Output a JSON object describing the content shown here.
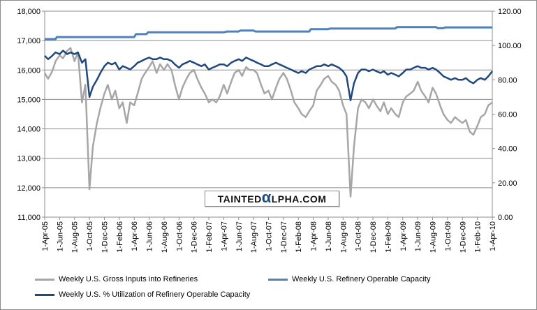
{
  "chart_data": {
    "type": "line",
    "title": "",
    "xlabel": "",
    "ylabel": "",
    "left_axis": {
      "ylim": [
        11000,
        18000
      ],
      "ticks": [
        "11,000",
        "12,000",
        "13,000",
        "14,000",
        "15,000",
        "16,000",
        "17,000",
        "18,000"
      ]
    },
    "right_axis": {
      "ylim": [
        0,
        120
      ],
      "ticks": [
        "0.00",
        "20.00",
        "40.00",
        "60.00",
        "80.00",
        "100.00",
        "120.00"
      ]
    },
    "x_ticks": [
      "1-Apr-05",
      "1-Jun-05",
      "1-Aug-05",
      "1-Oct-05",
      "1-Dec-05",
      "1-Feb-06",
      "1-Apr-06",
      "1-Jun-06",
      "1-Aug-06",
      "1-Oct-06",
      "1-Dec-06",
      "1-Feb-07",
      "1-Apr-07",
      "1-Jun-07",
      "1-Aug-07",
      "1-Oct-07",
      "1-Dec-07",
      "1-Feb-08",
      "1-Apr-08",
      "1-Jun-08",
      "1-Aug-08",
      "1-Oct-08",
      "1-Dec-08",
      "1-Feb-09",
      "1-Apr-09",
      "1-Jun-09",
      "1-Aug-09",
      "1-Oct-09",
      "1-Dec-09",
      "1-Feb-10",
      "1-Apr-10"
    ],
    "x_range_months": [
      "2005-04",
      "2010-04"
    ],
    "grid": true,
    "legend_placement": "bottom",
    "series": [
      {
        "name": "Weekly U.S. Gross Inputs into Refineries",
        "axis": "left",
        "color": "#a6a6a6",
        "points": [
          [
            "2005-04",
            15900
          ],
          [
            "2005-04-15",
            15700
          ],
          [
            "2005-05",
            15950
          ],
          [
            "2005-05-15",
            16300
          ],
          [
            "2005-06",
            16500
          ],
          [
            "2005-06-15",
            16400
          ],
          [
            "2005-07",
            16650
          ],
          [
            "2005-07-15",
            16750
          ],
          [
            "2005-08",
            16300
          ],
          [
            "2005-08-15",
            16600
          ],
          [
            "2005-09",
            14900
          ],
          [
            "2005-09-15",
            15500
          ],
          [
            "2005-10",
            11950
          ],
          [
            "2005-10-15",
            13400
          ],
          [
            "2005-11",
            14200
          ],
          [
            "2005-11-15",
            14700
          ],
          [
            "2005-12",
            15200
          ],
          [
            "2005-12-15",
            15500
          ],
          [
            "2006-01",
            15000
          ],
          [
            "2006-01-15",
            15300
          ],
          [
            "2006-02",
            14700
          ],
          [
            "2006-02-15",
            14900
          ],
          [
            "2006-03",
            14200
          ],
          [
            "2006-03-15",
            14900
          ],
          [
            "2006-04",
            14800
          ],
          [
            "2006-04-15",
            15200
          ],
          [
            "2006-05",
            15700
          ],
          [
            "2006-05-15",
            15900
          ],
          [
            "2006-06",
            16100
          ],
          [
            "2006-06-15",
            16300
          ],
          [
            "2006-07",
            15900
          ],
          [
            "2006-07-15",
            16200
          ],
          [
            "2006-08",
            16000
          ],
          [
            "2006-08-15",
            16200
          ],
          [
            "2006-09",
            16000
          ],
          [
            "2006-09-15",
            15500
          ],
          [
            "2006-10",
            15000
          ],
          [
            "2006-10-15",
            15400
          ],
          [
            "2006-11",
            15700
          ],
          [
            "2006-11-15",
            15900
          ],
          [
            "2006-12",
            16000
          ],
          [
            "2006-12-15",
            15700
          ],
          [
            "2007-01",
            15400
          ],
          [
            "2007-01-15",
            15200
          ],
          [
            "2007-02",
            14900
          ],
          [
            "2007-02-15",
            15000
          ],
          [
            "2007-03",
            14900
          ],
          [
            "2007-03-15",
            15100
          ],
          [
            "2007-04",
            15500
          ],
          [
            "2007-04-15",
            15200
          ],
          [
            "2007-05",
            15600
          ],
          [
            "2007-05-15",
            15900
          ],
          [
            "2007-06",
            16000
          ],
          [
            "2007-06-15",
            15800
          ],
          [
            "2007-07",
            16100
          ],
          [
            "2007-07-15",
            16000
          ],
          [
            "2007-08",
            16000
          ],
          [
            "2007-08-15",
            15900
          ],
          [
            "2007-09",
            15500
          ],
          [
            "2007-09-15",
            15200
          ],
          [
            "2007-10",
            15300
          ],
          [
            "2007-10-15",
            15000
          ],
          [
            "2007-11",
            15400
          ],
          [
            "2007-11-15",
            15700
          ],
          [
            "2007-12",
            15900
          ],
          [
            "2007-12-15",
            15700
          ],
          [
            "2008-01",
            15300
          ],
          [
            "2008-01-15",
            14900
          ],
          [
            "2008-02",
            14700
          ],
          [
            "2008-02-15",
            14500
          ],
          [
            "2008-03",
            14400
          ],
          [
            "2008-03-15",
            14600
          ],
          [
            "2008-04",
            14800
          ],
          [
            "2008-04-15",
            15300
          ],
          [
            "2008-05",
            15500
          ],
          [
            "2008-05-15",
            15700
          ],
          [
            "2008-06",
            15800
          ],
          [
            "2008-06-15",
            15600
          ],
          [
            "2008-07",
            15500
          ],
          [
            "2008-07-15",
            15300
          ],
          [
            "2008-08",
            14800
          ],
          [
            "2008-08-15",
            14500
          ],
          [
            "2008-09",
            11700
          ],
          [
            "2008-09-15",
            13400
          ],
          [
            "2008-10",
            14700
          ],
          [
            "2008-10-15",
            15000
          ],
          [
            "2008-11",
            14900
          ],
          [
            "2008-11-15",
            14700
          ],
          [
            "2008-12",
            15000
          ],
          [
            "2008-12-15",
            14800
          ],
          [
            "2009-01",
            14600
          ],
          [
            "2009-01-15",
            14900
          ],
          [
            "2009-02",
            14500
          ],
          [
            "2009-02-15",
            14700
          ],
          [
            "2009-03",
            14500
          ],
          [
            "2009-03-15",
            14400
          ],
          [
            "2009-04",
            14900
          ],
          [
            "2009-04-15",
            15100
          ],
          [
            "2009-05",
            15200
          ],
          [
            "2009-05-15",
            15300
          ],
          [
            "2009-06",
            15600
          ],
          [
            "2009-06-15",
            15300
          ],
          [
            "2009-07",
            15100
          ],
          [
            "2009-07-15",
            14900
          ],
          [
            "2009-08",
            15400
          ],
          [
            "2009-08-15",
            15200
          ],
          [
            "2009-09",
            14800
          ],
          [
            "2009-09-15",
            14500
          ],
          [
            "2009-10",
            14300
          ],
          [
            "2009-10-15",
            14200
          ],
          [
            "2009-11",
            14400
          ],
          [
            "2009-11-15",
            14300
          ],
          [
            "2009-12",
            14200
          ],
          [
            "2009-12-15",
            14300
          ],
          [
            "2010-01",
            13900
          ],
          [
            "2010-01-15",
            13800
          ],
          [
            "2010-02",
            14100
          ],
          [
            "2010-02-15",
            14400
          ],
          [
            "2010-03",
            14500
          ],
          [
            "2010-03-15",
            14800
          ],
          [
            "2010-04",
            14900
          ]
        ]
      },
      {
        "name": "Weekly U.S. Refinery Operable Capacity",
        "axis": "left",
        "color": "#4f81bd",
        "points": [
          [
            "2005-04",
            17050
          ],
          [
            "2005-05-15",
            17050
          ],
          [
            "2005-05-20",
            17120
          ],
          [
            "2006-04-01",
            17120
          ],
          [
            "2006-04-08",
            17220
          ],
          [
            "2006-05-20",
            17220
          ],
          [
            "2006-05-27",
            17280
          ],
          [
            "2007-04-01",
            17280
          ],
          [
            "2007-04-15",
            17310
          ],
          [
            "2007-06-01",
            17310
          ],
          [
            "2007-06-08",
            17340
          ],
          [
            "2007-08-01",
            17340
          ],
          [
            "2007-08-08",
            17310
          ],
          [
            "2008-03-15",
            17310
          ],
          [
            "2008-03-22",
            17390
          ],
          [
            "2008-06-01",
            17390
          ],
          [
            "2008-06-08",
            17410
          ],
          [
            "2009-03-01",
            17410
          ],
          [
            "2009-03-08",
            17460
          ],
          [
            "2009-08-15",
            17460
          ],
          [
            "2009-08-22",
            17420
          ],
          [
            "2009-09-15",
            17420
          ],
          [
            "2009-09-22",
            17450
          ],
          [
            "2010-04",
            17450
          ]
        ]
      },
      {
        "name": "Weekly U.S. % Utilization  of Refinery Operable Capacity",
        "axis": "right",
        "color": "#1f497d",
        "points": [
          [
            "2005-04",
            94
          ],
          [
            "2005-04-15",
            92
          ],
          [
            "2005-05",
            94
          ],
          [
            "2005-05-15",
            96
          ],
          [
            "2005-06",
            95
          ],
          [
            "2005-06-15",
            97
          ],
          [
            "2005-07",
            95
          ],
          [
            "2005-07-15",
            96
          ],
          [
            "2005-08",
            95
          ],
          [
            "2005-08-15",
            96
          ],
          [
            "2005-09",
            90
          ],
          [
            "2005-09-15",
            92
          ],
          [
            "2005-10",
            70
          ],
          [
            "2005-10-15",
            76
          ],
          [
            "2005-11",
            80
          ],
          [
            "2005-11-15",
            84
          ],
          [
            "2005-12",
            88
          ],
          [
            "2005-12-15",
            90
          ],
          [
            "2006-01",
            89
          ],
          [
            "2006-01-15",
            90
          ],
          [
            "2006-02",
            86
          ],
          [
            "2006-02-15",
            88
          ],
          [
            "2006-03",
            87
          ],
          [
            "2006-03-15",
            86
          ],
          [
            "2006-04",
            88
          ],
          [
            "2006-04-15",
            90
          ],
          [
            "2006-05",
            91
          ],
          [
            "2006-05-15",
            92
          ],
          [
            "2006-06",
            93
          ],
          [
            "2006-06-15",
            92
          ],
          [
            "2006-07",
            92
          ],
          [
            "2006-07-15",
            93
          ],
          [
            "2006-08",
            92
          ],
          [
            "2006-08-15",
            92
          ],
          [
            "2006-09",
            91
          ],
          [
            "2006-09-15",
            89
          ],
          [
            "2006-10",
            87
          ],
          [
            "2006-10-15",
            89
          ],
          [
            "2006-11",
            90
          ],
          [
            "2006-11-15",
            91
          ],
          [
            "2006-12",
            90
          ],
          [
            "2006-12-15",
            89
          ],
          [
            "2007-01",
            88
          ],
          [
            "2007-01-15",
            89
          ],
          [
            "2007-02",
            86
          ],
          [
            "2007-02-15",
            87
          ],
          [
            "2007-03",
            88
          ],
          [
            "2007-03-15",
            89
          ],
          [
            "2007-04",
            89
          ],
          [
            "2007-04-15",
            88
          ],
          [
            "2007-05",
            90
          ],
          [
            "2007-05-15",
            91
          ],
          [
            "2007-06",
            92
          ],
          [
            "2007-06-15",
            91
          ],
          [
            "2007-07",
            93
          ],
          [
            "2007-07-15",
            92
          ],
          [
            "2007-08",
            91
          ],
          [
            "2007-08-15",
            90
          ],
          [
            "2007-09",
            89
          ],
          [
            "2007-09-15",
            88
          ],
          [
            "2007-10",
            88
          ],
          [
            "2007-10-15",
            89
          ],
          [
            "2007-11",
            90
          ],
          [
            "2007-11-15",
            89
          ],
          [
            "2007-12",
            88
          ],
          [
            "2007-12-15",
            87
          ],
          [
            "2008-01",
            86
          ],
          [
            "2008-01-15",
            85
          ],
          [
            "2008-02",
            84
          ],
          [
            "2008-02-15",
            85
          ],
          [
            "2008-03",
            84
          ],
          [
            "2008-03-15",
            86
          ],
          [
            "2008-04",
            87
          ],
          [
            "2008-04-15",
            88
          ],
          [
            "2008-05",
            88
          ],
          [
            "2008-05-15",
            89
          ],
          [
            "2008-06",
            88
          ],
          [
            "2008-06-15",
            89
          ],
          [
            "2008-07",
            88
          ],
          [
            "2008-07-15",
            87
          ],
          [
            "2008-08",
            85
          ],
          [
            "2008-08-15",
            82
          ],
          [
            "2008-09",
            68
          ],
          [
            "2008-09-15",
            78
          ],
          [
            "2008-10",
            84
          ],
          [
            "2008-10-15",
            86
          ],
          [
            "2008-11",
            86
          ],
          [
            "2008-11-15",
            85
          ],
          [
            "2008-12",
            86
          ],
          [
            "2008-12-15",
            85
          ],
          [
            "2009-01",
            84
          ],
          [
            "2009-01-15",
            85
          ],
          [
            "2009-02",
            83
          ],
          [
            "2009-02-15",
            84
          ],
          [
            "2009-03",
            83
          ],
          [
            "2009-03-15",
            82
          ],
          [
            "2009-04",
            84
          ],
          [
            "2009-04-15",
            86
          ],
          [
            "2009-05",
            86
          ],
          [
            "2009-05-15",
            87
          ],
          [
            "2009-06",
            88
          ],
          [
            "2009-06-15",
            87
          ],
          [
            "2009-07",
            87
          ],
          [
            "2009-07-15",
            86
          ],
          [
            "2009-08",
            87
          ],
          [
            "2009-08-15",
            86
          ],
          [
            "2009-09",
            84
          ],
          [
            "2009-09-15",
            82
          ],
          [
            "2009-10",
            81
          ],
          [
            "2009-10-15",
            80
          ],
          [
            "2009-11",
            81
          ],
          [
            "2009-11-15",
            80
          ],
          [
            "2009-12",
            80
          ],
          [
            "2009-12-15",
            81
          ],
          [
            "2010-01",
            79
          ],
          [
            "2010-01-15",
            78
          ],
          [
            "2010-02",
            80
          ],
          [
            "2010-02-15",
            81
          ],
          [
            "2010-03",
            80
          ],
          [
            "2010-03-15",
            82
          ],
          [
            "2010-04",
            85
          ]
        ]
      }
    ]
  },
  "watermark": {
    "prefix": "TAINTED",
    "alpha": "α",
    "suffix": "LPHA.COM"
  }
}
